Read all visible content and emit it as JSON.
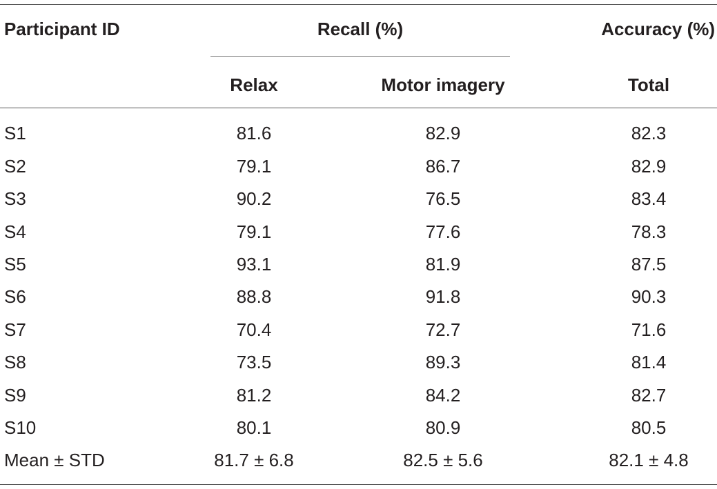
{
  "table": {
    "headers": {
      "participant": "Participant ID",
      "recall": "Recall (%)",
      "accuracy": "Accuracy (%)",
      "relax": "Relax",
      "motor": "Motor imagery",
      "total": "Total"
    },
    "rows": [
      {
        "id": "S1",
        "relax": "81.6",
        "motor": "82.9",
        "total": "82.3"
      },
      {
        "id": "S2",
        "relax": "79.1",
        "motor": "86.7",
        "total": "82.9"
      },
      {
        "id": "S3",
        "relax": "90.2",
        "motor": "76.5",
        "total": "83.4"
      },
      {
        "id": "S4",
        "relax": "79.1",
        "motor": "77.6",
        "total": "78.3"
      },
      {
        "id": "S5",
        "relax": "93.1",
        "motor": "81.9",
        "total": "87.5"
      },
      {
        "id": "S6",
        "relax": "88.8",
        "motor": "91.8",
        "total": "90.3"
      },
      {
        "id": "S7",
        "relax": "70.4",
        "motor": "72.7",
        "total": "71.6"
      },
      {
        "id": "S8",
        "relax": "73.5",
        "motor": "89.3",
        "total": "81.4"
      },
      {
        "id": "S9",
        "relax": "81.2",
        "motor": "84.2",
        "total": "82.7"
      },
      {
        "id": "S10",
        "relax": "80.1",
        "motor": "80.9",
        "total": "80.5"
      },
      {
        "id": "Mean ± STD",
        "relax": "81.7 ± 6.8",
        "motor": "82.5 ± 5.6",
        "total": "82.1 ± 4.8"
      }
    ]
  }
}
